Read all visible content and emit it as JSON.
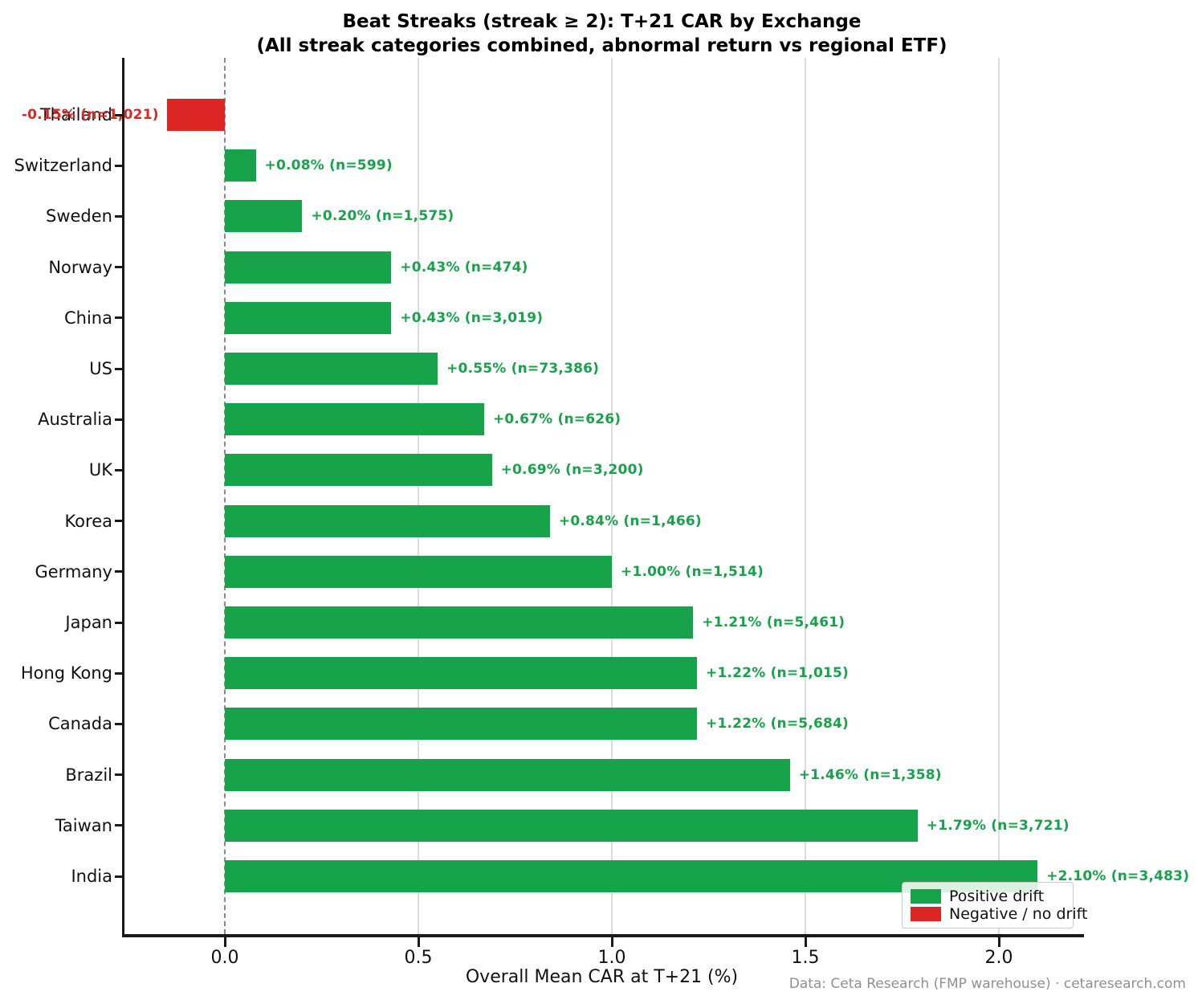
{
  "title": {
    "line1": "Beat Streaks (streak ≥ 2): T+21 CAR by Exchange",
    "line2": "(All streak categories combined, abnormal return vs regional ETF)"
  },
  "xlabel": "Overall Mean CAR at T+21 (%)",
  "footer": "Data: Ceta Research (FMP warehouse) · cetaresearch.com",
  "legend": {
    "positive": "Positive drift",
    "negative": "Negative / no drift"
  },
  "colors": {
    "positive": "#16a34a",
    "negative": "#dc2626",
    "grid": "#dcdcdc",
    "zero_line": "#8a8a8a"
  },
  "chart_data": {
    "type": "bar",
    "orientation": "horizontal",
    "title": "Beat Streaks (streak ≥ 2): T+21 CAR by Exchange (All streak categories combined, abnormal return vs regional ETF)",
    "xlabel": "Overall Mean CAR at T+21 (%)",
    "xlim": [
      -0.26,
      2.22
    ],
    "xticks": [
      0.0,
      0.5,
      1.0,
      1.5,
      2.0
    ],
    "xtick_labels": [
      "0.0",
      "0.5",
      "1.0",
      "1.5",
      "2.0"
    ],
    "grid": "vertical-only",
    "legend_position": "lower right",
    "categories": [
      "Thailand",
      "Switzerland",
      "Sweden",
      "Norway",
      "China",
      "US",
      "Australia",
      "UK",
      "Korea",
      "Germany",
      "Japan",
      "Hong Kong",
      "Canada",
      "Brazil",
      "Taiwan",
      "India"
    ],
    "values": [
      -0.15,
      0.08,
      0.2,
      0.43,
      0.43,
      0.55,
      0.67,
      0.69,
      0.84,
      1.0,
      1.21,
      1.22,
      1.22,
      1.46,
      1.79,
      2.1
    ],
    "n_counts": [
      "1,021",
      "599",
      "1,575",
      "474",
      "3,019",
      "73,386",
      "626",
      "3,200",
      "1,466",
      "1,514",
      "5,461",
      "1,015",
      "5,684",
      "1,358",
      "3,721",
      "3,483"
    ],
    "value_labels": [
      "-0.15%  (n=1,021)",
      "+0.08%  (n=599)",
      "+0.20%  (n=1,575)",
      "+0.43%  (n=474)",
      "+0.43%  (n=3,019)",
      "+0.55%  (n=73,386)",
      "+0.67%  (n=626)",
      "+0.69%  (n=3,200)",
      "+0.84%  (n=1,466)",
      "+1.00%  (n=1,514)",
      "+1.21%  (n=5,461)",
      "+1.22%  (n=1,015)",
      "+1.22%  (n=5,684)",
      "+1.46%  (n=1,358)",
      "+1.79%  (n=3,721)",
      "+2.10%  (n=3,483)"
    ]
  }
}
